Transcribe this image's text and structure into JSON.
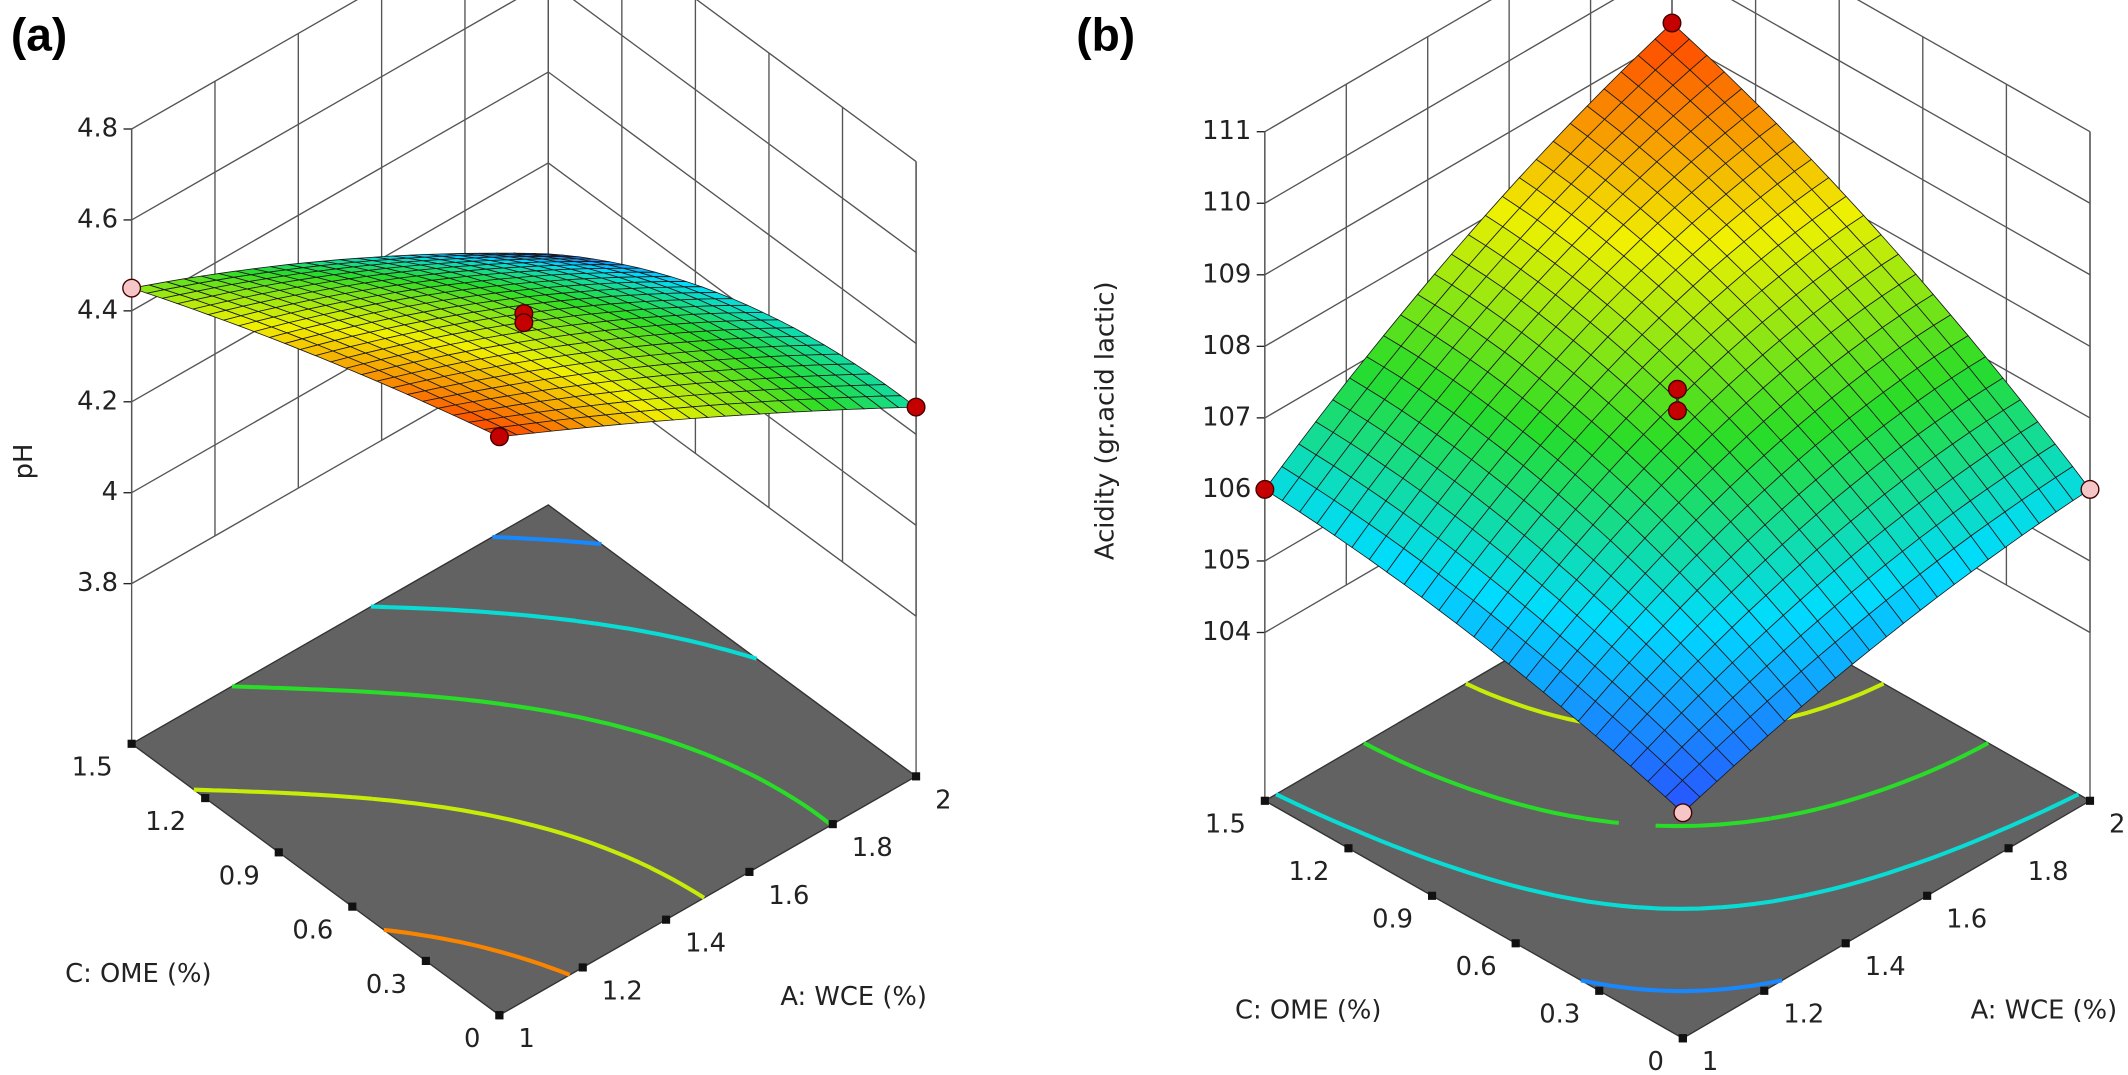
{
  "chart_data": [
    {
      "type": "surface",
      "title": "(a)",
      "zlabel": "pH",
      "xlabel": "A: WCE (%)",
      "ylabel": "C: OME (%)",
      "xlim": [
        1,
        2
      ],
      "xticks": [
        1,
        1.2,
        1.4,
        1.6,
        1.8,
        2
      ],
      "ylim": [
        0,
        1.5
      ],
      "yticks": [
        0,
        0.3,
        0.6,
        0.9,
        1.2,
        1.5
      ],
      "zlim": [
        3.8,
        4.8
      ],
      "zticks": [
        3.8,
        4,
        4.2,
        4.4,
        4.6,
        4.8
      ],
      "x_grid": [
        1,
        1.5,
        2
      ],
      "y_grid": [
        0,
        0.75,
        1.5
      ],
      "z": [
        [
          4.72,
          4.5,
          4.26
        ],
        [
          4.6,
          4.43,
          4.2
        ],
        [
          4.45,
          4.25,
          4.0
        ]
      ],
      "points": [
        {
          "x": 1,
          "y": 1.5,
          "z": 4.45,
          "color": "#f6c6c6"
        },
        {
          "x": 1,
          "y": 0,
          "z": 4.72,
          "color": "#c40000"
        },
        {
          "x": 2,
          "y": 0,
          "z": 4.26,
          "color": "#c40000"
        },
        {
          "x": 1.5,
          "y": 0.75,
          "z": 4.43,
          "color": "#c40000"
        },
        {
          "x": 1.5,
          "y": 0.75,
          "z": 4.41,
          "color": "#c40000"
        }
      ]
    },
    {
      "type": "surface",
      "title": "(b)",
      "zlabel": "Acidity (gr.acid lactic)",
      "xlabel": "A: WCE (%)",
      "ylabel": "C: OME (%)",
      "xlim": [
        1,
        2
      ],
      "xticks": [
        1,
        1.2,
        1.4,
        1.6,
        1.8,
        2
      ],
      "ylim": [
        0,
        1.5
      ],
      "yticks": [
        0,
        0.3,
        0.6,
        0.9,
        1.2,
        1.5
      ],
      "zlim": [
        104,
        111
      ],
      "zticks": [
        104,
        105,
        106,
        107,
        108,
        109,
        110,
        111
      ],
      "x_grid": [
        1,
        1.5,
        2
      ],
      "y_grid": [
        0,
        0.75,
        1.5
      ],
      "z": [
        [
          104.8,
          105.6,
          106.0
        ],
        [
          105.6,
          107.25,
          107.9
        ],
        [
          106.0,
          107.9,
          109.2
        ]
      ],
      "points": [
        {
          "x": 1,
          "y": 1.5,
          "z": 106.0,
          "color": "#c40000"
        },
        {
          "x": 2,
          "y": 0,
          "z": 106.0,
          "color": "#f6c6c6"
        },
        {
          "x": 1,
          "y": 0,
          "z": 104.8,
          "color": "#f6c6c6"
        },
        {
          "x": 2,
          "y": 1.5,
          "z": 109.2,
          "color": "#c40000"
        },
        {
          "x": 1.5,
          "y": 0.75,
          "z": 107.4,
          "color": "#c40000"
        },
        {
          "x": 1.5,
          "y": 0.75,
          "z": 107.1,
          "color": "#c40000"
        }
      ]
    }
  ]
}
